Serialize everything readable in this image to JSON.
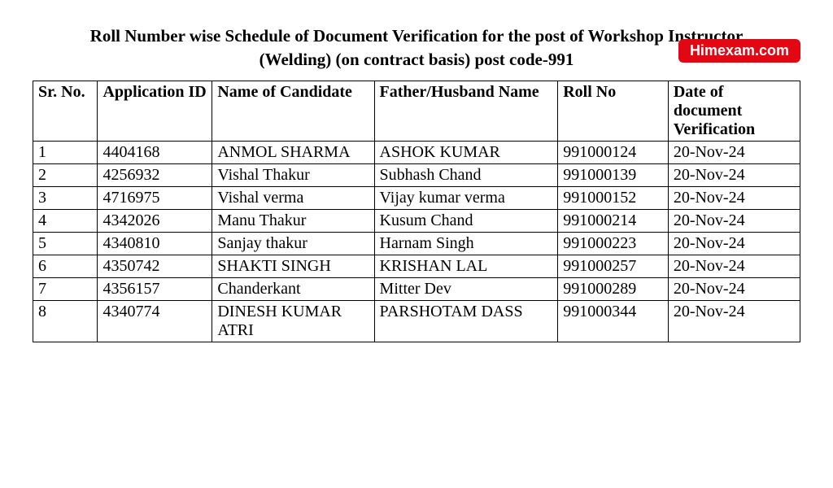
{
  "title_line1": "Roll Number wise Schedule of Document Verification for the post of Workshop Instructor",
  "title_line2": "(Welding) (on contract basis) post code-991",
  "watermark": "Himexam.com",
  "columns": {
    "sr": "Sr. No.",
    "app": "Application ID",
    "name": "Name of Candidate",
    "father": "Father/Husband Name",
    "roll": "Roll No",
    "date": "Date of document Verification"
  },
  "rows": [
    {
      "sr": "1",
      "app": "4404168",
      "name": "ANMOL SHARMA",
      "father": "ASHOK KUMAR",
      "roll": "991000124",
      "date": "20-Nov-24"
    },
    {
      "sr": "2",
      "app": "4256932",
      "name": "Vishal Thakur",
      "father": " Subhash Chand",
      "roll": "991000139",
      "date": "20-Nov-24"
    },
    {
      "sr": "3",
      "app": "4716975",
      "name": "Vishal verma",
      "father": "Vijay kumar verma",
      "roll": "991000152",
      "date": "20-Nov-24"
    },
    {
      "sr": "4",
      "app": "4342026",
      "name": "Manu Thakur",
      "father": " Kusum Chand",
      "roll": "991000214",
      "date": "20-Nov-24"
    },
    {
      "sr": "5",
      "app": "4340810",
      "name": "Sanjay thakur",
      "father": "Harnam Singh",
      "roll": "991000223",
      "date": "20-Nov-24"
    },
    {
      "sr": "6",
      "app": "4350742",
      "name": "SHAKTI SINGH",
      "father": "KRISHAN LAL",
      "roll": "991000257",
      "date": "20-Nov-24"
    },
    {
      "sr": "7",
      "app": "4356157",
      "name": "Chanderkant",
      "father": " Mitter Dev",
      "roll": "991000289",
      "date": "20-Nov-24"
    },
    {
      "sr": "8",
      "app": "4340774",
      "name": "DINESH KUMAR ATRI",
      "father": "PARSHOTAM DASS",
      "roll": "991000344",
      "date": "20-Nov-24"
    }
  ]
}
